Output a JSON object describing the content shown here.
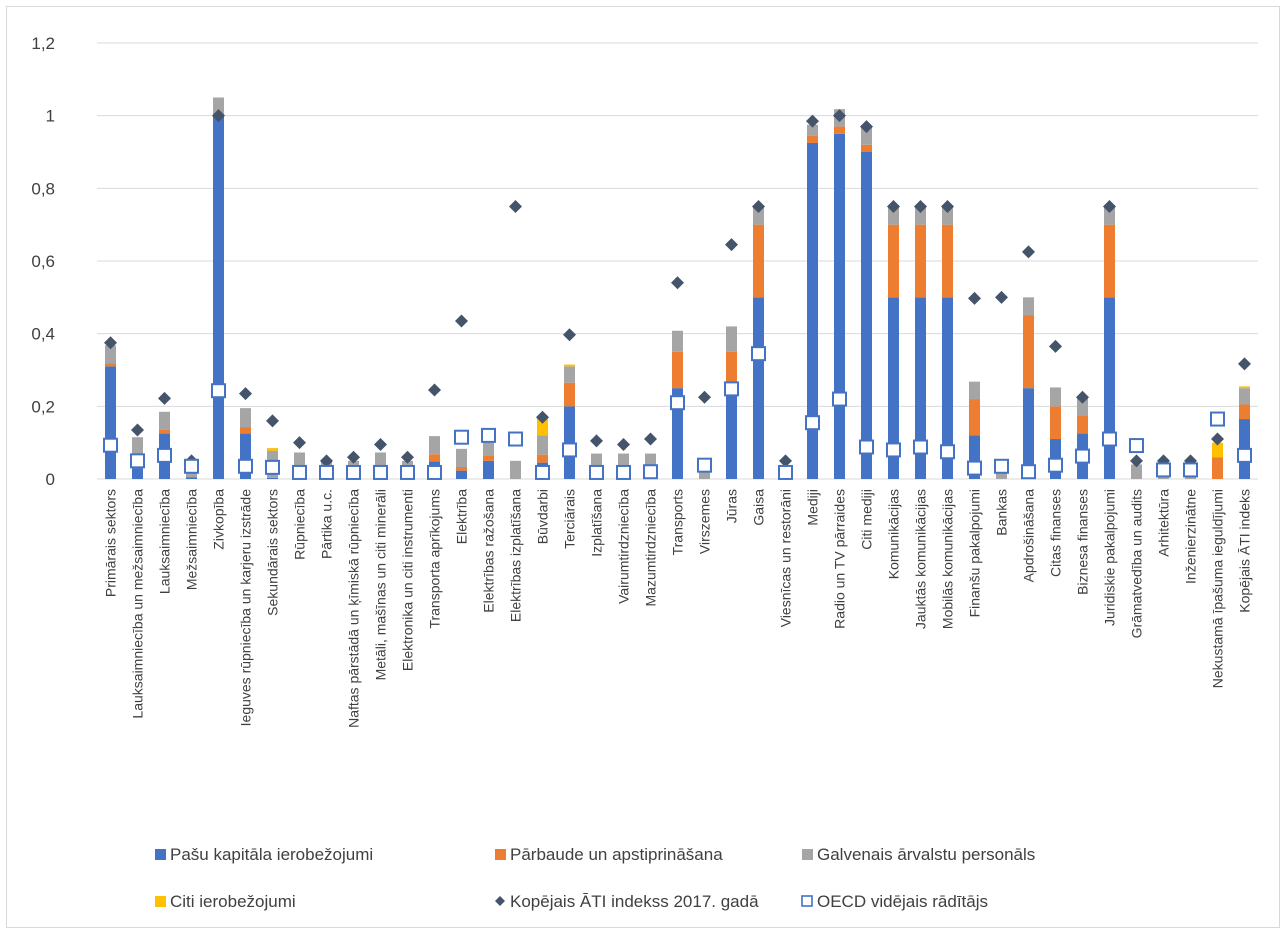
{
  "chart_data": {
    "type": "bar",
    "stacked": true,
    "ylim": [
      0,
      1.2
    ],
    "yticks": [
      "0",
      "0,2",
      "0,4",
      "0,6",
      "0,8",
      "1",
      "1,2"
    ],
    "grid": true,
    "legend_position": "bottom",
    "categories": [
      "Primārais sektors",
      "Lauksaimniecība un mežsaimniecība",
      "Lauksaimniecība",
      "Mežsaimniecība",
      "Zivkopība",
      "Ieguves rūpniecība un karjeru izstrāde",
      "Sekundārais sektors",
      "Rūpniecība",
      "Pārtika u.c.",
      "Naftas pārstādā un ķīmiskā rūpniecība",
      "Metāli, mašīnas un citi minerāli",
      "Elektronika un citi instrumenti",
      "Transporta aprīkojums",
      "Elektrība",
      "Elektrības ražošana",
      "Elektrības izplatīšana",
      "Būvdarbi",
      "Terciārais",
      "Izplatīšana",
      "Vairumtirdzniecība",
      "Mazumtirdzniecība",
      "Transports",
      "Virszemes",
      "Jūras",
      "Gaisa",
      "Viesnīcas un restorāni",
      "Mediji",
      "Radio un TV pārraides",
      "Citi mediji",
      "Komunikācijas",
      "Jauktās komunikācijas",
      "Mobilās komunikācijas",
      "Finanšu pakalpojumi",
      "Bankas",
      "Apdrošināšana",
      "Citas finanses",
      "Biznesa finanses",
      "Juridiskie pakalpojumi",
      "Grāmatvedība un audits",
      "Arhitektūra",
      "Inženierzinātne",
      "Nekustamā īpašuma ieguldījumi",
      "Kopējais ĀTI indeks"
    ],
    "series": [
      {
        "name": "Pašu kapitāla ierobežojumi",
        "type": "bar",
        "color": "#4472c4",
        "values": [
          0.31,
          0.03,
          0.125,
          0.005,
          1.0,
          0.125,
          0.003,
          0.003,
          0.0,
          0.0,
          0.003,
          0.0,
          0.048,
          0.023,
          0.05,
          0.0,
          0.045,
          0.2,
          0.0,
          0.0,
          0.0,
          0.25,
          0.0,
          0.25,
          0.5,
          0.0,
          0.925,
          0.95,
          0.9,
          0.5,
          0.5,
          0.5,
          0.12,
          0.0,
          0.25,
          0.11,
          0.125,
          0.5,
          0.0,
          0.0,
          0.0,
          0.0,
          0.165
        ]
      },
      {
        "name": "Pārbaude un apstiprināšana",
        "type": "bar",
        "color": "#ed7d31",
        "values": [
          0.008,
          0.0,
          0.01,
          0.0,
          0.0,
          0.018,
          0.0,
          0.0,
          0.0,
          0.0,
          0.0,
          0.0,
          0.02,
          0.01,
          0.015,
          0.0,
          0.022,
          0.065,
          0.0,
          0.0,
          0.0,
          0.1,
          0.0,
          0.1,
          0.2,
          0.0,
          0.02,
          0.02,
          0.02,
          0.2,
          0.2,
          0.2,
          0.1,
          0.0,
          0.2,
          0.09,
          0.05,
          0.2,
          0.0,
          0.0,
          0.0,
          0.06,
          0.04
        ]
      },
      {
        "name": "Galvenais ārvalstu personāls",
        "type": "bar",
        "color": "#a5a5a5",
        "values": [
          0.05,
          0.085,
          0.05,
          0.045,
          0.05,
          0.052,
          0.075,
          0.07,
          0.05,
          0.05,
          0.07,
          0.05,
          0.05,
          0.05,
          0.035,
          0.05,
          0.053,
          0.045,
          0.07,
          0.07,
          0.07,
          0.058,
          0.025,
          0.07,
          0.05,
          0.0,
          0.03,
          0.048,
          0.05,
          0.05,
          0.05,
          0.05,
          0.048,
          0.03,
          0.05,
          0.052,
          0.05,
          0.05,
          0.04,
          0.03,
          0.03,
          0.0,
          0.045
        ]
      },
      {
        "name": "Citi ierobežojumi",
        "type": "bar",
        "color": "#ffc000",
        "values": [
          0.0,
          0.0,
          0.0,
          0.0,
          0.0,
          0.0,
          0.007,
          0.0,
          0.0,
          0.0,
          0.0,
          0.0,
          0.0,
          0.0,
          0.0,
          0.0,
          0.05,
          0.005,
          0.0,
          0.0,
          0.0,
          0.0,
          0.0,
          0.0,
          0.0,
          0.0,
          0.0,
          0.0,
          0.0,
          0.0,
          0.0,
          0.0,
          0.0,
          0.0,
          0.0,
          0.0,
          0.0,
          0.0,
          0.0,
          0.0,
          0.0,
          0.04,
          0.005
        ]
      },
      {
        "name": "Kopējais ĀTI indekss 2017. gadā",
        "type": "marker-diamond",
        "color": "#44546a",
        "values": [
          0.375,
          0.135,
          0.222,
          0.05,
          1.0,
          0.235,
          0.16,
          0.1,
          0.05,
          0.06,
          0.095,
          0.06,
          0.245,
          0.435,
          0.12,
          0.75,
          0.17,
          0.397,
          0.105,
          0.095,
          0.11,
          0.54,
          0.225,
          0.645,
          0.75,
          0.05,
          0.985,
          1.0,
          0.97,
          0.75,
          0.75,
          0.75,
          0.497,
          0.5,
          0.625,
          0.365,
          0.225,
          0.75,
          0.05,
          0.05,
          0.05,
          0.11,
          0.317
        ]
      },
      {
        "name": "OECD vidējais rādītājs",
        "type": "marker-square",
        "color": "#4472c4",
        "values": [
          0.093,
          0.05,
          0.065,
          0.035,
          0.243,
          0.035,
          0.032,
          0.018,
          0.018,
          0.018,
          0.018,
          0.018,
          0.018,
          0.115,
          0.12,
          0.11,
          0.018,
          0.08,
          0.018,
          0.018,
          0.02,
          0.21,
          0.038,
          0.248,
          0.345,
          0.018,
          0.155,
          0.22,
          0.088,
          0.08,
          0.088,
          0.075,
          0.03,
          0.035,
          0.02,
          0.038,
          0.063,
          0.11,
          0.092,
          0.025,
          0.025,
          0.165,
          0.065
        ]
      }
    ]
  }
}
